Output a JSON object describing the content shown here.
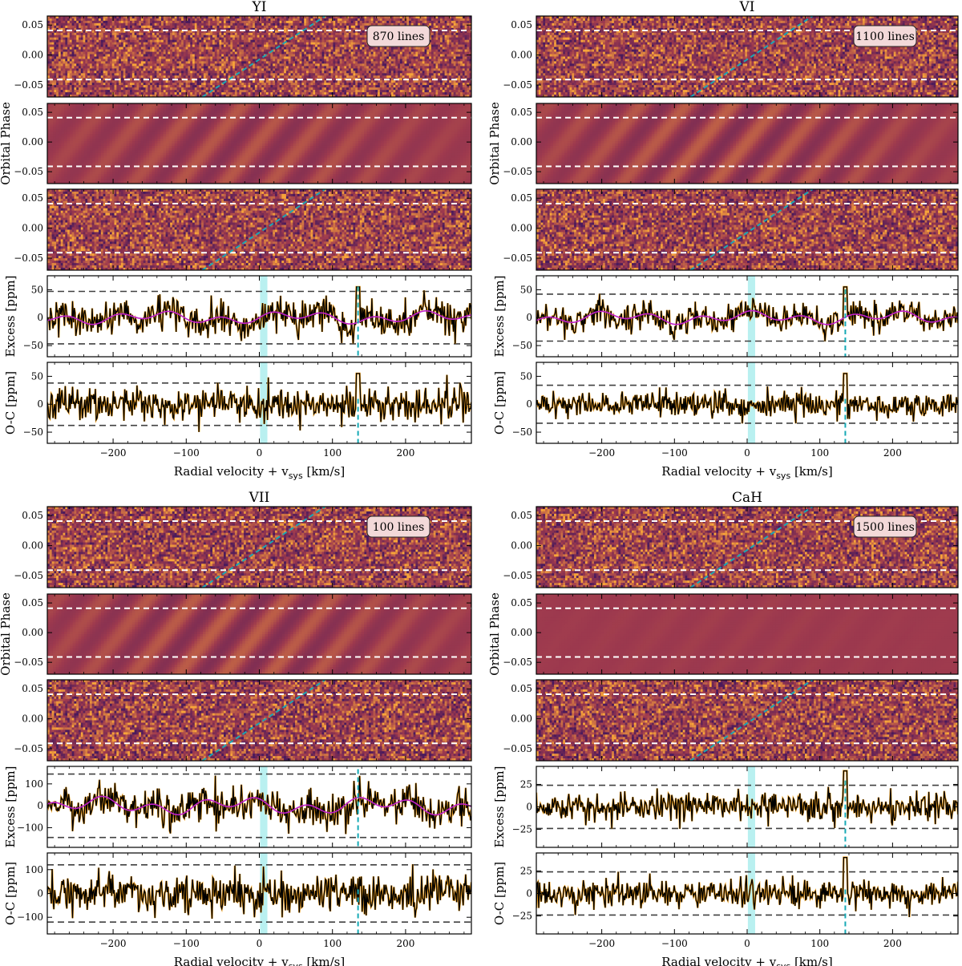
{
  "chart_data": [
    {
      "type": "heatmap",
      "title": "YI",
      "annotation": "870 lines",
      "ylabel_phase": "Orbital Phase",
      "ylabel_excess": "Excess [ppm]",
      "ylabel_oc": "O-C [ppm]",
      "xlabel": "Radial velocity + v",
      "xlabel_sub": "sys",
      "xlabel_unit": " [km/s]",
      "x_ticks": [
        "−200",
        "−100",
        "0",
        "100",
        "200"
      ],
      "x_tick_values": [
        -200,
        -100,
        0,
        100,
        200
      ],
      "xlim": [
        -290,
        290
      ],
      "phase_ticks": [
        "0.05",
        "0.00",
        "−0.05"
      ],
      "phase_tick_values": [
        0.05,
        0.0,
        -0.05
      ],
      "phase_ylim": [
        -0.07,
        0.065
      ],
      "transit_phase_limits": [
        -0.041,
        0.041
      ],
      "excess_ticks": [
        "50",
        "0",
        "−50"
      ],
      "excess_tick_values": [
        50,
        0,
        -50
      ],
      "excess_ylim": [
        -70,
        75
      ],
      "excess_threshold": 47,
      "oc_ticks": [
        "50",
        "0",
        "−50"
      ],
      "oc_tick_values": [
        50,
        0,
        -50
      ],
      "oc_ylim": [
        -70,
        75
      ],
      "oc_threshold": 38,
      "highlight_band_kms": [
        1,
        11
      ],
      "planet_rv_kms": 135,
      "trail_kms_per_phase": 1700,
      "model_amplitude": 0.8,
      "noise_sigma": 15,
      "planet_peak": 55,
      "show_planet_peak": true,
      "show_planet_line": true
    },
    {
      "type": "heatmap",
      "title": "VI",
      "annotation": "1100 lines",
      "ylabel_phase": "Orbital Phase",
      "ylabel_excess": "Excess [ppm]",
      "ylabel_oc": "O-C [ppm]",
      "xlabel": "Radial velocity + v",
      "xlabel_sub": "sys",
      "xlabel_unit": " [km/s]",
      "x_ticks": [
        "−200",
        "−100",
        "0",
        "100",
        "200"
      ],
      "x_tick_values": [
        -200,
        -100,
        0,
        100,
        200
      ],
      "xlim": [
        -290,
        290
      ],
      "phase_ticks": [
        "0.05",
        "0.00",
        "−0.05"
      ],
      "phase_tick_values": [
        0.05,
        0.0,
        -0.05
      ],
      "phase_ylim": [
        -0.07,
        0.065
      ],
      "transit_phase_limits": [
        -0.041,
        0.041
      ],
      "excess_ticks": [
        "50",
        "0",
        "−50"
      ],
      "excess_tick_values": [
        50,
        0,
        -50
      ],
      "excess_ylim": [
        -70,
        75
      ],
      "excess_threshold": 42,
      "oc_ticks": [
        "50",
        "0",
        "−50"
      ],
      "oc_tick_values": [
        50,
        0,
        -50
      ],
      "oc_ylim": [
        -70,
        75
      ],
      "oc_threshold": 34,
      "highlight_band_kms": [
        1,
        11
      ],
      "planet_rv_kms": 135,
      "trail_kms_per_phase": 1700,
      "model_amplitude": 1.0,
      "noise_sigma": 12,
      "planet_peak": 55,
      "show_planet_peak": true,
      "show_planet_line": true
    },
    {
      "type": "heatmap",
      "title": "VII",
      "annotation": "100 lines",
      "ylabel_phase": "Orbital Phase",
      "ylabel_excess": "Excess [ppm]",
      "ylabel_oc": "O-C [ppm]",
      "xlabel": "Radial velocity + v",
      "xlabel_sub": "sys",
      "xlabel_unit": " [km/s]",
      "x_ticks": [
        "−200",
        "−100",
        "0",
        "100",
        "200"
      ],
      "x_tick_values": [
        -200,
        -100,
        0,
        100,
        200
      ],
      "xlim": [
        -290,
        290
      ],
      "phase_ticks": [
        "0.05",
        "0.00",
        "−0.05"
      ],
      "phase_tick_values": [
        0.05,
        0.0,
        -0.05
      ],
      "phase_ylim": [
        -0.07,
        0.065
      ],
      "transit_phase_limits": [
        -0.041,
        0.041
      ],
      "excess_ticks": [
        "100",
        "0",
        "−100"
      ],
      "excess_tick_values": [
        100,
        0,
        -100
      ],
      "excess_ylim": [
        -190,
        180
      ],
      "excess_threshold": 145,
      "oc_ticks": [
        "100",
        "0",
        "−100"
      ],
      "oc_tick_values": [
        100,
        0,
        -100
      ],
      "oc_ylim": [
        -170,
        170
      ],
      "oc_threshold": 120,
      "highlight_band_kms": [
        1,
        11
      ],
      "planet_rv_kms": 135,
      "trail_kms_per_phase": 1700,
      "model_amplitude": 1.0,
      "noise_sigma": 42,
      "planet_peak": 0,
      "show_planet_peak": false,
      "show_planet_line": true
    },
    {
      "type": "heatmap",
      "title": "CaH",
      "annotation": "1500 lines",
      "ylabel_phase": "Orbital Phase",
      "ylabel_excess": "Excess [ppm]",
      "ylabel_oc": "O-C [ppm]",
      "xlabel": "Radial velocity + v",
      "xlabel_sub": "sys",
      "xlabel_unit": " [km/s]",
      "x_ticks": [
        "−200",
        "−100",
        "0",
        "100",
        "200"
      ],
      "x_tick_values": [
        -200,
        -100,
        0,
        100,
        200
      ],
      "xlim": [
        -290,
        290
      ],
      "phase_ticks": [
        "0.05",
        "0.00",
        "−0.05"
      ],
      "phase_tick_values": [
        0.05,
        0.0,
        -0.05
      ],
      "phase_ylim": [
        -0.07,
        0.065
      ],
      "transit_phase_limits": [
        -0.041,
        0.041
      ],
      "excess_ticks": [
        "25",
        "0",
        "−25"
      ],
      "excess_tick_values": [
        25,
        0,
        -25
      ],
      "excess_ylim": [
        -45,
        45
      ],
      "excess_threshold": 24,
      "oc_ticks": [
        "25",
        "0",
        "−25"
      ],
      "oc_tick_values": [
        25,
        0,
        -25
      ],
      "oc_ylim": [
        -45,
        45
      ],
      "oc_threshold": 24,
      "highlight_band_kms": [
        1,
        11
      ],
      "planet_rv_kms": 135,
      "trail_kms_per_phase": 1700,
      "model_amplitude": 0.12,
      "noise_sigma": 8,
      "planet_peak": 40,
      "show_planet_peak": true,
      "show_planet_line": true
    }
  ],
  "colors": {
    "background": "#ffffff",
    "heatmap_base": "#9e3a4e",
    "heatmap_low": "#4a1a5c",
    "heatmap_high": "#f7a43a",
    "transit_lines": "#ffffff",
    "planet_trail": "#1aa7b5",
    "excess_line": "#000000",
    "model_line": "#c021c9",
    "planet_signal": "#f3a21f",
    "threshold_lines": "#404040",
    "highlight_band": "#7fe3e3",
    "planet_rv_line": "#15a9b5",
    "annotation_box": "#f3d9d9"
  }
}
